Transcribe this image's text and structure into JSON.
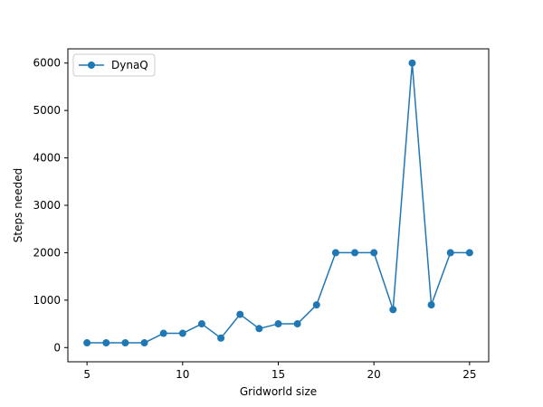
{
  "chart_data": {
    "type": "line",
    "title": "",
    "xlabel": "Gridworld size",
    "ylabel": "Steps needed",
    "xlim": [
      4.0,
      26.0
    ],
    "ylim": [
      -300,
      6300
    ],
    "xticks": [
      5,
      10,
      15,
      20,
      25
    ],
    "yticks": [
      0,
      1000,
      2000,
      3000,
      4000,
      5000,
      6000
    ],
    "grid": false,
    "legend_position": "upper-left",
    "series": [
      {
        "name": "DynaQ",
        "color": "#1f77b4",
        "marker": "circle",
        "x": [
          5,
          6,
          7,
          8,
          9,
          10,
          11,
          12,
          13,
          14,
          15,
          16,
          17,
          18,
          19,
          20,
          21,
          22,
          23,
          24,
          25
        ],
        "y": [
          100,
          100,
          100,
          100,
          300,
          300,
          500,
          200,
          700,
          400,
          500,
          500,
          900,
          2000,
          2000,
          2000,
          800,
          6000,
          900,
          2000,
          2000
        ]
      }
    ]
  }
}
